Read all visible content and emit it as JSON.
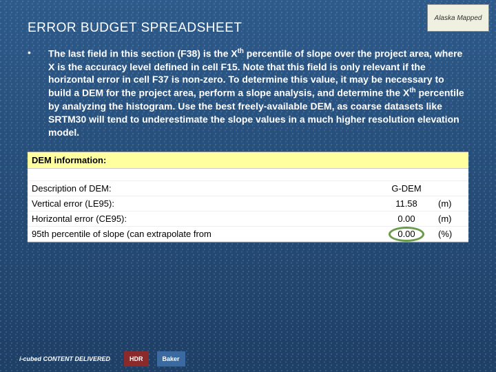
{
  "title": "ERROR BUDGET SPREADSHEET",
  "topright_logo": "Alaska Mapped",
  "bullet": {
    "marker": "•",
    "text_parts": {
      "p1": "The last field in this section (F38) is the X",
      "sup1": "th",
      "p2": " percentile of slope over the project area, where X is the accuracy level defined in cell F15.  Note that this field is only relevant if the horizontal error in cell F37 is non-zero.  To determine this value, it may be necessary to build a DEM for the project area, perform a slope analysis, and determine the X",
      "sup2": "th",
      "p3": " percentile by analyzing the histogram.  Use the best freely-available DEM, as coarse datasets like SRTM30 will tend to underestimate the slope values in a much higher resolution elevation model."
    }
  },
  "spreadsheet": {
    "header": "DEM information:",
    "rows": [
      {
        "label": "Description of DEM:",
        "value": "G-DEM",
        "unit": ""
      },
      {
        "label": "Vertical error (LE95):",
        "value": "11.58",
        "unit": "(m)"
      },
      {
        "label": "Horizontal error (CE95):",
        "value": "0.00",
        "unit": "(m)"
      },
      {
        "label": "95th percentile of slope (can extrapolate from",
        "value": "0.00",
        "unit": "(%)"
      }
    ],
    "highlight_row_index": 3,
    "colors": {
      "header_bg": "#ffffa0",
      "highlight_border": "#6a9a4a"
    }
  },
  "footer": {
    "logos": [
      "i-cubed CONTENT DELIVERED",
      "HDR",
      "Baker"
    ]
  }
}
